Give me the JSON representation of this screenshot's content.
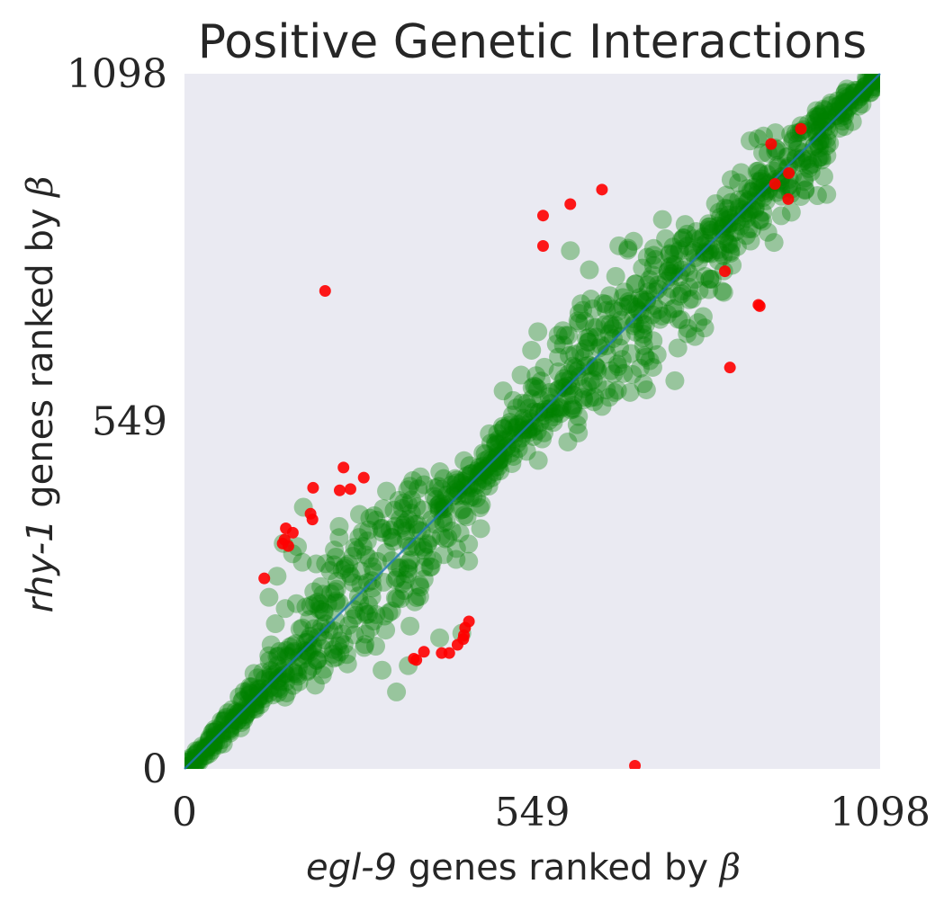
{
  "chart_data": {
    "type": "scatter",
    "title": "Positive Genetic Interactions",
    "xlabel": {
      "gene": "egl-9",
      "text": "genes ranked by",
      "symbol": "β"
    },
    "ylabel": {
      "gene": "rhy-1",
      "text": "genes ranked by",
      "symbol": "β"
    },
    "xlim": [
      0,
      1098
    ],
    "ylim": [
      0,
      1098
    ],
    "xticks": [
      "0",
      "549",
      "1098"
    ],
    "yticks": [
      "0",
      "549",
      "1098"
    ],
    "grid": false,
    "colors": {
      "background": "#eaeaf2",
      "main_points": "#008000",
      "outliers": "#ff0000",
      "diagonal": "#1f77b4"
    },
    "diagonal_line": {
      "x": [
        0,
        1098
      ],
      "y": [
        0,
        1098
      ]
    },
    "main_points_generated": {
      "count": 1098,
      "alpha": 0.35,
      "description_ref": "near diagonal"
    },
    "outliers": {
      "name": "",
      "x": [
        222,
        251,
        283,
        262,
        245,
        203,
        199,
        202,
        160,
        171,
        158,
        155,
        164,
        126,
        362,
        366,
        378,
        406,
        418,
        431,
        440,
        441,
        443,
        449,
        711,
        566,
        566,
        609,
        659,
        853,
        926,
        973,
        953,
        932,
        954,
        908,
        861,
        906
      ],
      "y": [
        755,
        476,
        460,
        442,
        440,
        444,
        403,
        394,
        380,
        373,
        362,
        356,
        352,
        301,
        174,
        172,
        185,
        183,
        183,
        196,
        205,
        211,
        223,
        233,
        5,
        826,
        874,
        892,
        915,
        786,
        987,
        1011,
        900,
        924,
        941,
        731,
        634,
        733
      ]
    }
  }
}
